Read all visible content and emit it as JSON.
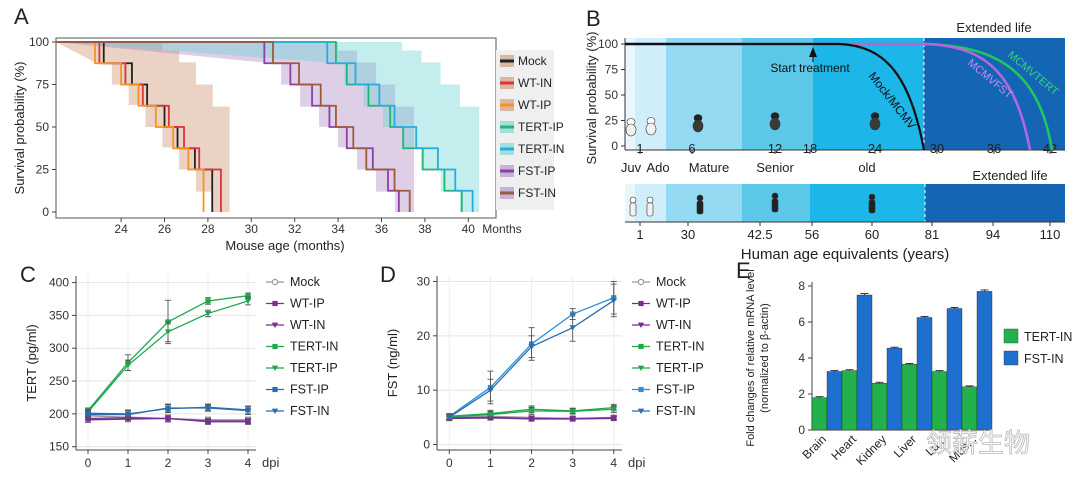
{
  "figure": {
    "panel_labels": [
      "A",
      "B",
      "C",
      "D",
      "E"
    ],
    "watermark": "领薪生物"
  },
  "chart_data": [
    {
      "id": "A",
      "type": "line",
      "title": "",
      "xlabel": "Mouse age (months)",
      "ylabel": "Survival probability (%)",
      "x_ticks": [
        24,
        26,
        28,
        30,
        32,
        34,
        36,
        38,
        40
      ],
      "x_unit_label": "Months",
      "y_ticks": [
        0,
        25,
        50,
        75,
        100
      ],
      "xlim": [
        21,
        41
      ],
      "ylim": [
        0,
        100
      ],
      "legend": [
        "Mock",
        "WT-IN",
        "WT-IP",
        "TERT-IP",
        "TERT-IN",
        "FST-IP",
        "FST-IN"
      ],
      "series": [
        {
          "name": "Mock",
          "color": "#222222",
          "group": "control",
          "x": [
            21,
            23.2,
            24.5,
            25.2,
            26.0,
            26.6,
            27.4,
            28.2
          ],
          "y": [
            100,
            87.5,
            75,
            62.5,
            50,
            37.5,
            25,
            12.5
          ],
          "end": 28.2
        },
        {
          "name": "WT-IN",
          "color": "#e0323a",
          "group": "control",
          "x": [
            21,
            23.0,
            24.2,
            25.0,
            26.2,
            26.9,
            27.6,
            28.6
          ],
          "y": [
            100,
            87.5,
            75,
            62.5,
            50,
            37.5,
            25,
            12.5
          ],
          "end": 28.6
        },
        {
          "name": "WT-IP",
          "color": "#f7941d",
          "group": "control",
          "x": [
            21,
            22.8,
            24.0,
            24.8,
            25.6,
            26.4,
            27.1,
            27.8
          ],
          "y": [
            100,
            87.5,
            75,
            62.5,
            50,
            37.5,
            25,
            12.5
          ],
          "end": 27.8
        },
        {
          "name": "TERT-IP",
          "color": "#22b573",
          "group": "treated_tert",
          "x": [
            21,
            33.9,
            34.4,
            35.4,
            36.4,
            37.0,
            37.9,
            38.9
          ],
          "y": [
            100,
            87.5,
            75,
            62.5,
            50,
            37.5,
            25,
            12.5
          ],
          "end": 39.7
        },
        {
          "name": "TERT-IN",
          "color": "#29abe2",
          "group": "treated_tert",
          "x": [
            21,
            33.5,
            34.8,
            35.9,
            36.6,
            37.6,
            38.6,
            39.4
          ],
          "y": [
            100,
            87.5,
            75,
            62.5,
            50,
            37.5,
            25,
            12.5
          ],
          "end": 40.2
        },
        {
          "name": "FST-IP",
          "color": "#8b3fa9",
          "group": "treated_fst",
          "x": [
            21,
            30.6,
            31.8,
            32.8,
            33.6,
            34.4,
            35.6,
            36.3
          ],
          "y": [
            100,
            87.5,
            75,
            62.5,
            50,
            37.5,
            25,
            12.5
          ],
          "end": 36.8
        },
        {
          "name": "FST-IN",
          "color": "#9c5b3b",
          "group": "treated_fst",
          "x": [
            21,
            31.0,
            32.2,
            33.2,
            33.9,
            34.7,
            35.3,
            36.6
          ],
          "y": [
            100,
            87.5,
            75,
            62.5,
            50,
            37.5,
            25,
            12.5
          ],
          "end": 37.3
        }
      ],
      "ci_bands": [
        {
          "color": "#c98963",
          "x0": 21,
          "x1": 29.0,
          "start": 22.8,
          "low": [
            88,
            75,
            63,
            50,
            38,
            25,
            12,
            0
          ],
          "high": [
            100,
            100,
            100,
            100,
            95,
            88,
            75,
            62
          ]
        },
        {
          "color": "#a880bf",
          "x0": 21,
          "x1": 37.5,
          "start": 30.5,
          "low": [
            88,
            75,
            62,
            50,
            38,
            25,
            12,
            0
          ],
          "high": [
            100,
            100,
            100,
            100,
            95,
            88,
            75,
            62
          ]
        },
        {
          "color": "#63d2d2",
          "x0": 21,
          "x1": 40.5,
          "start": 33.4,
          "low": [
            88,
            75,
            62,
            50,
            38,
            25,
            12,
            0
          ],
          "high": [
            100,
            100,
            100,
            100,
            95,
            88,
            75,
            62
          ]
        }
      ]
    },
    {
      "id": "B",
      "type": "line",
      "ylabel": "Survival probability (%)",
      "y_ticks": [
        0,
        25,
        50,
        75,
        100
      ],
      "mouse_ticks": [
        1,
        6,
        12,
        18,
        24,
        30,
        36,
        42
      ],
      "mouse_stage_labels": [
        "Juv",
        "Ado",
        "Mature",
        "Senior",
        "old"
      ],
      "annotation": "Start treatment",
      "banner": "Extended life",
      "curves": [
        {
          "name": "Mock/MCMV",
          "color": "#111111"
        },
        {
          "name": "MCMVFST",
          "color": "#b266e0"
        },
        {
          "name": "MCMVTERT",
          "color": "#22c55e"
        }
      ],
      "human": {
        "xlabel": "Human age equivalents (years)",
        "ticks": [
          1,
          30,
          42.5,
          56,
          60,
          81,
          94,
          110
        ],
        "banner": "Extended life"
      }
    },
    {
      "id": "C",
      "type": "line",
      "xlabel": "dpi",
      "ylabel": "TERT (pg/ml)",
      "x": [
        0,
        1,
        2,
        3,
        4
      ],
      "xlim": [
        -0.3,
        4.2
      ],
      "ylim": [
        145,
        410
      ],
      "y_ticks": [
        150,
        200,
        250,
        300,
        350,
        400
      ],
      "legend": [
        "Mock",
        "WT-IP",
        "WT-IN",
        "TERT-IN",
        "TERT-IP",
        "FST-IP",
        "FST-IN"
      ],
      "series": [
        {
          "name": "Mock",
          "color": "#9a9a9a",
          "marker": "circle",
          "values": [
            197,
            195,
            193,
            191,
            191
          ],
          "err": [
            6,
            4,
            5,
            4,
            4
          ]
        },
        {
          "name": "WT-IP",
          "color": "#7a2a9a",
          "marker": "square",
          "values": [
            193,
            194,
            193,
            189,
            189
          ],
          "err": [
            4,
            4,
            5,
            4,
            4
          ]
        },
        {
          "name": "WT-IN",
          "color": "#7a2a9a",
          "marker": "tri-down",
          "values": [
            191,
            192,
            193,
            188,
            188
          ],
          "err": [
            4,
            4,
            5,
            4,
            4
          ]
        },
        {
          "name": "TERT-IN",
          "color": "#1ea84a",
          "marker": "square",
          "values": [
            205,
            278,
            340,
            372,
            380
          ],
          "err": [
            4,
            12,
            33,
            5,
            4
          ]
        },
        {
          "name": "TERT-IP",
          "color": "#1ea84a",
          "marker": "tri-down",
          "values": [
            203,
            274,
            325,
            353,
            372
          ],
          "err": [
            4,
            8,
            15,
            5,
            6
          ]
        },
        {
          "name": "FST-IP",
          "color": "#2b6cb0",
          "marker": "square",
          "values": [
            201,
            200,
            208,
            210,
            206
          ],
          "err": [
            5,
            6,
            6,
            5,
            6
          ]
        },
        {
          "name": "FST-IN",
          "color": "#2b6cb0",
          "marker": "tri-down",
          "values": [
            199,
            199,
            209,
            209,
            205
          ],
          "err": [
            5,
            6,
            6,
            5,
            6
          ]
        }
      ]
    },
    {
      "id": "D",
      "type": "line",
      "xlabel": "dpi",
      "ylabel": "FST (ng/ml)",
      "x": [
        0,
        1,
        2,
        3,
        4
      ],
      "xlim": [
        -0.3,
        4.2
      ],
      "ylim": [
        -1,
        31
      ],
      "y_ticks": [
        0,
        10,
        20,
        30
      ],
      "legend": [
        "Mock",
        "WT-IP",
        "WT-IN",
        "TERT-IN",
        "TERT-IP",
        "FST-IP",
        "FST-IN"
      ],
      "series": [
        {
          "name": "Mock",
          "color": "#9a9a9a",
          "marker": "circle",
          "values": [
            5.0,
            5.2,
            5.0,
            4.8,
            5.0
          ],
          "err": [
            0.4,
            0.4,
            0.4,
            0.4,
            0.4
          ]
        },
        {
          "name": "WT-IP",
          "color": "#7a2a9a",
          "marker": "square",
          "values": [
            4.9,
            5.0,
            4.8,
            4.8,
            4.9
          ],
          "err": [
            0.4,
            0.4,
            0.4,
            0.4,
            0.4
          ]
        },
        {
          "name": "WT-IN",
          "color": "#7a2a9a",
          "marker": "tri-down",
          "values": [
            4.8,
            4.9,
            4.7,
            4.7,
            4.8
          ],
          "err": [
            0.4,
            0.4,
            0.4,
            0.4,
            0.4
          ]
        },
        {
          "name": "TERT-IN",
          "color": "#1ea84a",
          "marker": "square",
          "values": [
            5.2,
            5.7,
            6.5,
            6.2,
            6.8
          ],
          "err": [
            0.5,
            0.6,
            0.6,
            0.5,
            0.6
          ]
        },
        {
          "name": "TERT-IP",
          "color": "#1ea84a",
          "marker": "tri-down",
          "values": [
            5.1,
            5.5,
            6.2,
            6.1,
            6.5
          ],
          "err": [
            0.5,
            0.6,
            0.6,
            0.5,
            0.6
          ]
        },
        {
          "name": "FST-IP",
          "color": "#2b8fd8",
          "marker": "square",
          "values": [
            5.2,
            10.5,
            18.5,
            24.0,
            27.0
          ],
          "err": [
            0.5,
            3.0,
            3.0,
            1.0,
            3.0
          ]
        },
        {
          "name": "FST-IN",
          "color": "#2b6cb0",
          "marker": "tri-down",
          "values": [
            5.0,
            10.0,
            18.0,
            21.5,
            26.5
          ],
          "err": [
            0.5,
            2.0,
            2.0,
            2.5,
            3.0
          ]
        }
      ]
    },
    {
      "id": "E",
      "type": "bar",
      "ylabel": "Fold changes of relative mRNA level (normalized to β-actin)",
      "categories": [
        "Brain",
        "Heart",
        "Kidney",
        "Liver",
        "Lung",
        "Muscle"
      ],
      "category_labels_shown": [
        "Brain",
        "Heart",
        "Kidney",
        "Liver",
        "Lu...",
        "Mus..."
      ],
      "ylim": [
        0,
        8
      ],
      "y_ticks": [
        0,
        2,
        4,
        6,
        8
      ],
      "series": [
        {
          "name": "TERT-IN",
          "color": "#22b14c",
          "values": [
            1.8,
            3.3,
            2.6,
            3.65,
            3.25,
            2.4
          ],
          "err": [
            0.05,
            0.05,
            0.05,
            0.05,
            0.05,
            0.05
          ]
        },
        {
          "name": "FST-IN",
          "color": "#1f6fd0",
          "values": [
            3.25,
            7.5,
            4.55,
            6.25,
            6.75,
            7.7
          ],
          "err": [
            0.05,
            0.08,
            0.05,
            0.06,
            0.06,
            0.08
          ]
        }
      ]
    }
  ]
}
